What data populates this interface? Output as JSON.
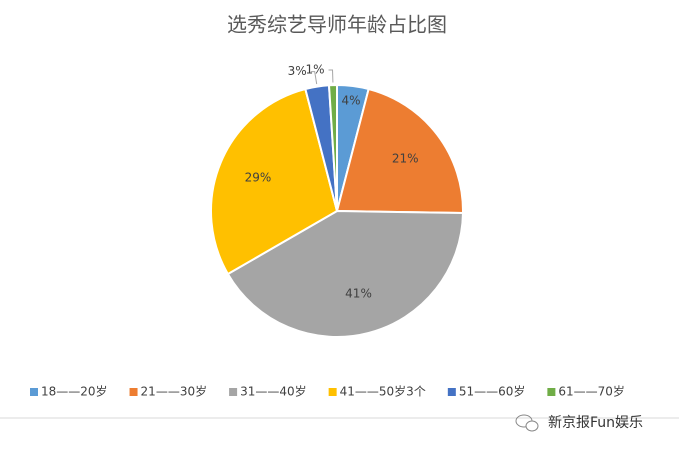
{
  "chart_data": {
    "type": "pie",
    "title": "选秀综艺导师年龄占比图",
    "categories": [
      "18——20岁",
      "21——30岁",
      "31——40岁",
      "41——50岁3个",
      "51——60岁",
      "61——70岁"
    ],
    "values": [
      4,
      21,
      41,
      29,
      3,
      1
    ],
    "value_labels": [
      "4%",
      "21%",
      "41%",
      "29%",
      "3%",
      "1%"
    ],
    "colors": [
      "#5b9bd5",
      "#ed7d31",
      "#a5a5a5",
      "#ffc000",
      "#4472c4",
      "#70ad47"
    ],
    "legend": "bottom"
  },
  "watermark": "新京报Fun娱乐"
}
